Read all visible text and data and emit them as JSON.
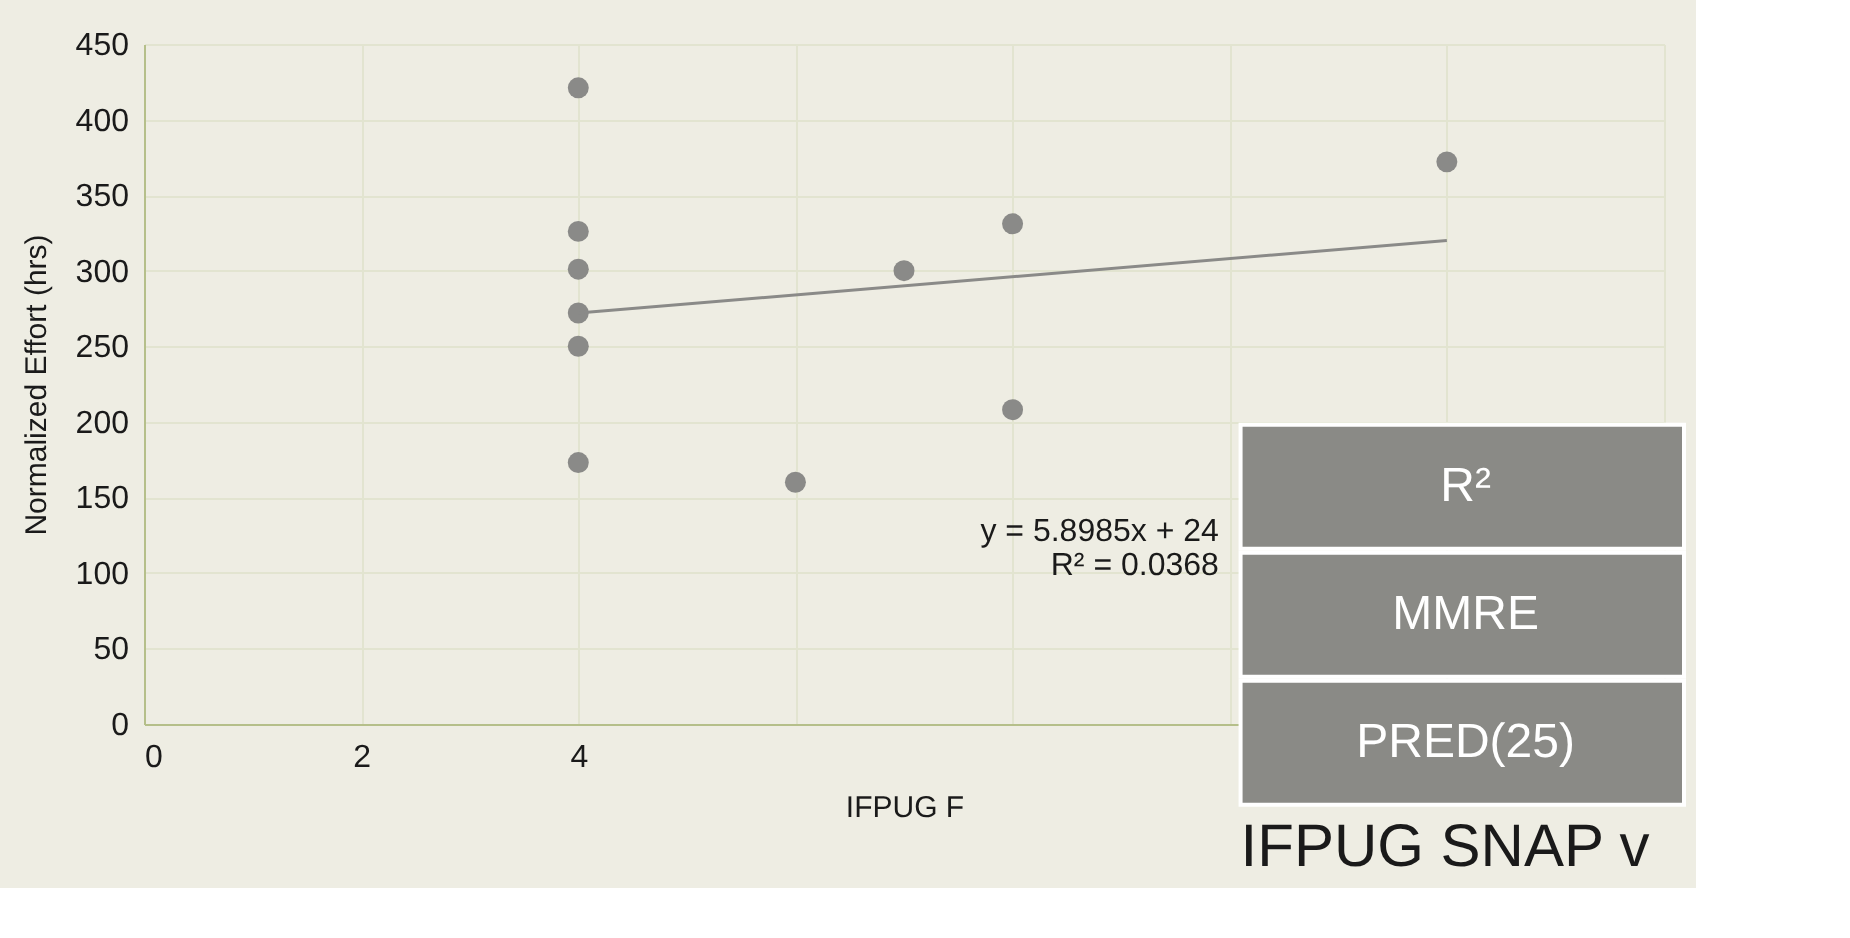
{
  "chart_data": {
    "type": "scatter",
    "xlabel": "IFPUG F",
    "ylabel": "Normalized Effort (hrs)",
    "x": [
      4,
      4,
      4,
      4,
      4,
      4,
      6,
      7,
      8,
      8,
      12
    ],
    "series": [
      {
        "color": "#8a8a88",
        "marker": "circle",
        "values": [
          421,
          326,
          301,
          272,
          250,
          173,
          160,
          300,
          331,
          208,
          372
        ]
      },
      {
        "type": "line",
        "color": "#8a8a88",
        "line_style": "solid",
        "x": [
          4,
          12
        ],
        "values": [
          272,
          320
        ]
      }
    ],
    "xlim": [
      0,
      14
    ],
    "xticks": [
      0,
      2,
      4,
      {
        "value": 6,
        "label": null
      },
      {
        "value": 8,
        "label": null
      },
      {
        "value": 10,
        "label": null
      },
      {
        "value": 12,
        "label": null
      },
      {
        "value": 14,
        "label": null
      }
    ],
    "ylim": [
      0,
      450
    ],
    "yticks": [
      0,
      50,
      100,
      150,
      200,
      250,
      300,
      350,
      400,
      450
    ],
    "grid": true,
    "annotations": [
      "y = 5.8985x + 24",
      "R² = 0.0368",
      "R²",
      "MMRE",
      "PRED(25)",
      "IFPUG SNAP v"
    ]
  }
}
